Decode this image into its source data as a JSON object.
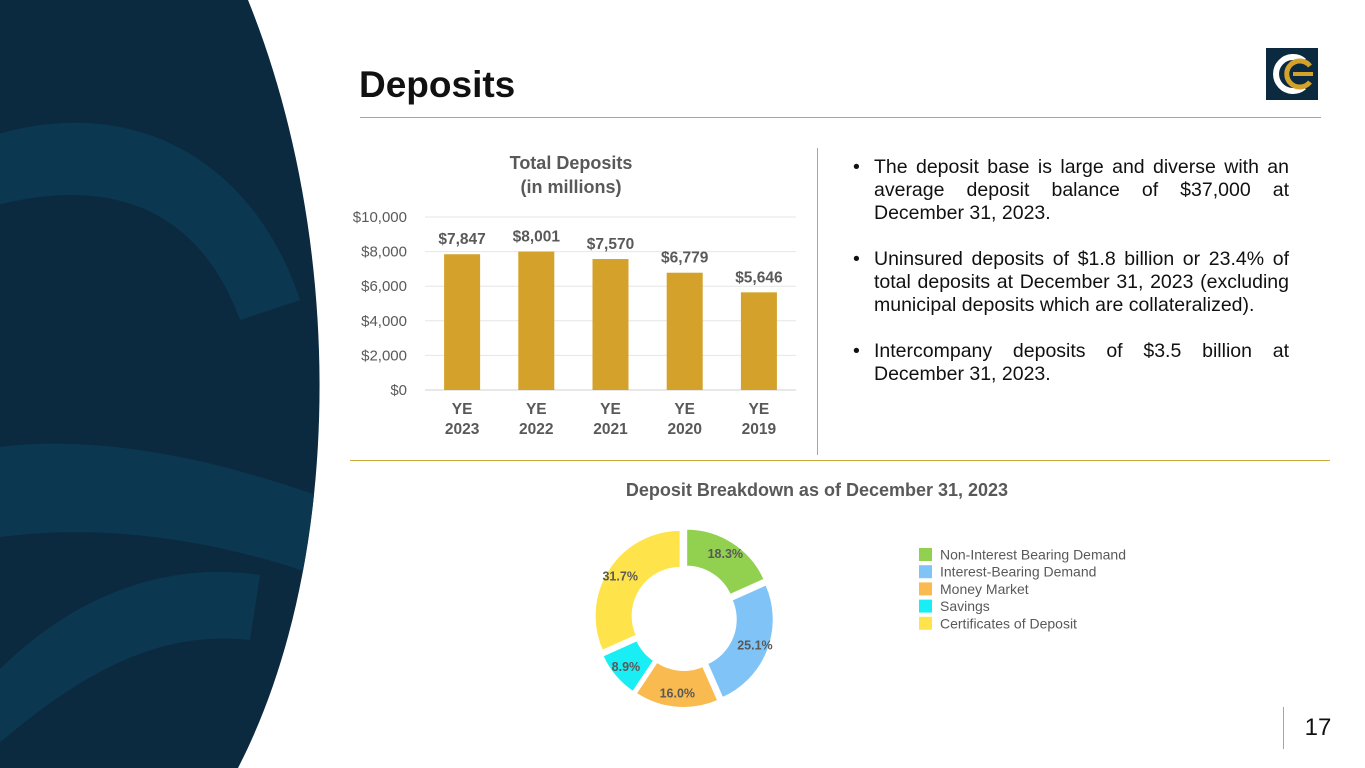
{
  "slide": {
    "title": "Deposits",
    "page_number": "17"
  },
  "colors": {
    "navy": "#0b2a3f",
    "gold": "#d4a12a",
    "rule": "#c9a83a"
  },
  "bullets": [
    "The deposit base is large and diverse with an average deposit balance of $37,000 at December 31, 2023.",
    "Uninsured deposits of $1.8 billion or 23.4% of total deposits at December 31, 2023 (excluding municipal deposits which are collateralized).",
    "Intercompany deposits of $3.5 billion at December 31, 2023."
  ],
  "chart_data": [
    {
      "type": "bar",
      "title": "Total Deposits",
      "subtitle": "(in millions)",
      "categories": [
        [
          "YE",
          "2023"
        ],
        [
          "YE",
          "2022"
        ],
        [
          "YE",
          "2021"
        ],
        [
          "YE",
          "2020"
        ],
        [
          "YE",
          "2019"
        ]
      ],
      "values": [
        7847,
        8001,
        7570,
        6779,
        5646
      ],
      "data_labels": [
        "$7,847",
        "$8,001",
        "$7,570",
        "$6,779",
        "$5,646"
      ],
      "yticks": [
        0,
        2000,
        4000,
        6000,
        8000,
        10000
      ],
      "ytick_labels": [
        "$0",
        "$2,000",
        "$4,000",
        "$6,000",
        "$8,000",
        "$10,000"
      ],
      "ylim": [
        0,
        10000
      ],
      "grid": true,
      "bar_color": "#d4a12a"
    },
    {
      "type": "pie",
      "style": "donut",
      "title": "Deposit Breakdown as of December 31, 2023",
      "legend_position": "right",
      "slices": [
        {
          "name": "Non-Interest Bearing Demand",
          "value": 18.3,
          "label": "18.3%",
          "color": "#92d050"
        },
        {
          "name": "Interest-Bearing Demand",
          "value": 25.1,
          "label": "25.1%",
          "color": "#80c4f7"
        },
        {
          "name": "Money Market",
          "value": 16.0,
          "label": "16.0%",
          "color": "#f9bb4f"
        },
        {
          "name": "Savings",
          "value": 8.9,
          "label": "8.9%",
          "color": "#19eef5"
        },
        {
          "name": "Certificates of Deposit",
          "value": 31.7,
          "label": "31.7%",
          "color": "#ffe34a"
        }
      ]
    }
  ]
}
